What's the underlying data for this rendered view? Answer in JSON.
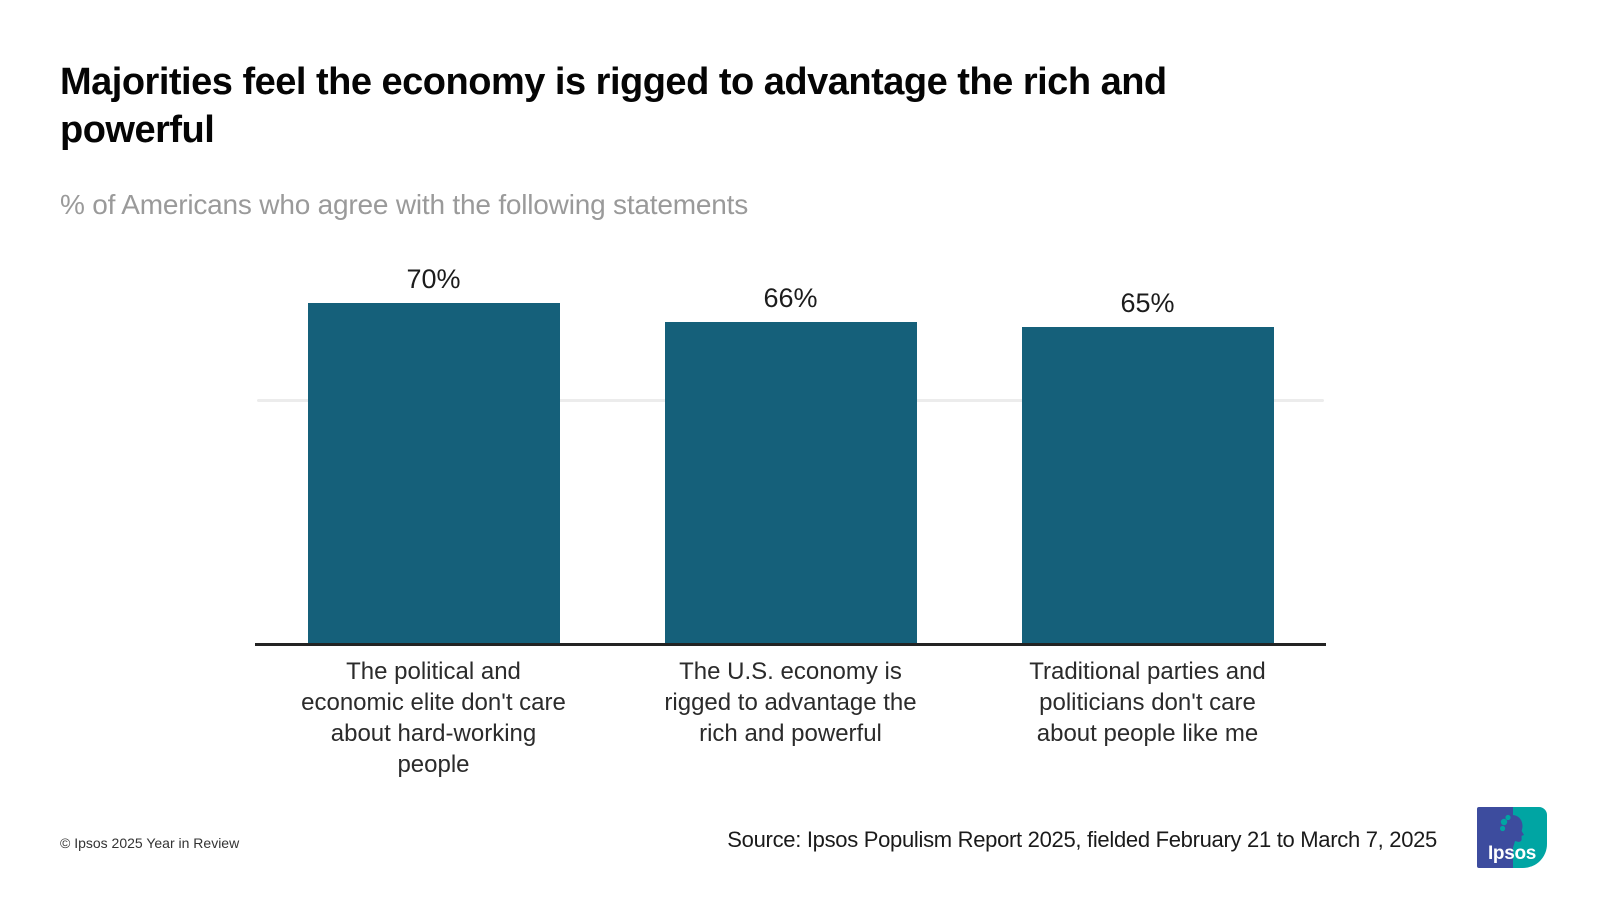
{
  "header": {
    "title": "Majorities feel the economy is rigged to advantage the rich and\npowerful",
    "subtitle": "% of Americans who agree with the following statements"
  },
  "chart_data": {
    "type": "bar",
    "orientation": "vertical",
    "title": "Majorities feel the economy is rigged to advantage the rich and powerful",
    "subtitle": "% of Americans who agree with the following statements",
    "categories": [
      "The political and economic elite don't care about hard-working people",
      "The U.S. economy is rigged to advantage the rich and powerful",
      "Traditional parties and politicians don't care about people like me"
    ],
    "categories_display": [
      "The political and\neconomic elite don't care\nabout hard-working\npeople",
      "The U.S. economy is\nrigged to advantage the\nrich and powerful",
      "Traditional parties and\npoliticians don't care\nabout people like me"
    ],
    "values": [
      70,
      66,
      65
    ],
    "data_labels": [
      "70%",
      "66%",
      "65%"
    ],
    "unit": "%",
    "bar_color": "#15607A",
    "ylim": [
      0,
      75
    ],
    "gridlines": [
      50
    ],
    "legend": "none",
    "grid": "single faint horizontal line at 50%"
  },
  "footer": {
    "copyright": "© Ipsos 2025 Year in Review",
    "source": "Source: Ipsos Populism Report 2025, fielded February 21 to March 7, 2025"
  },
  "logo": {
    "text": "Ipsos",
    "blue": "#3D4C9E",
    "teal": "#00A5A3"
  }
}
